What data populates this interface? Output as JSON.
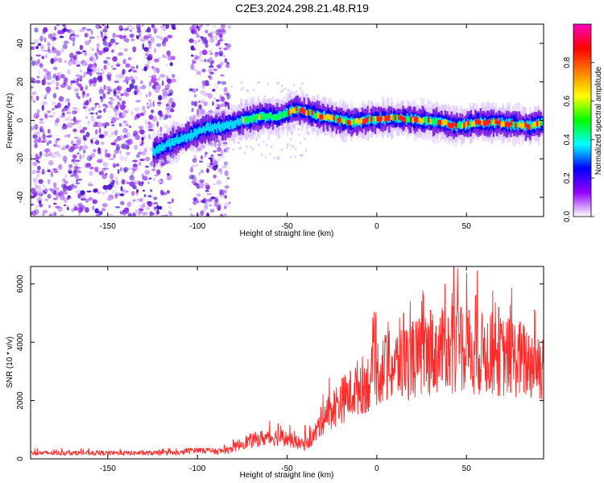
{
  "figure": {
    "title": "C2E3.2024.298.21.48.R19"
  },
  "chart_data": [
    {
      "type": "heatmap",
      "xlabel": "Height of straight line (km)",
      "ylabel": "Frequency (Hz)",
      "xlim": [
        -193,
        93
      ],
      "ylim": [
        -50,
        50
      ],
      "x_ticks": [
        -150,
        -100,
        -50,
        0,
        50
      ],
      "y_ticks": [
        -40,
        -20,
        0,
        20,
        40
      ],
      "colorbar": {
        "label": "Normalized spectral amplitude",
        "range": [
          0,
          1
        ],
        "ticks": [
          0,
          0.2,
          0.4,
          0.6,
          0.8
        ],
        "tick_labels": [
          "0.0",
          "0.2",
          "0.4",
          "0.6",
          "0.8"
        ],
        "colors": [
          "#ffffff",
          "#9400ff",
          "#0000ff",
          "#00ffff",
          "#00ff00",
          "#ffff00",
          "#ff8000",
          "#ff0000",
          "#ff00c0"
        ]
      },
      "ridge": {
        "x": [
          -125,
          -115,
          -105,
          -95,
          -85,
          -75,
          -65,
          -55,
          -45,
          -35,
          -25,
          -15,
          -5,
          5,
          15,
          25,
          35,
          45,
          55,
          65,
          75,
          85,
          92
        ],
        "y": [
          -16,
          -12,
          -8,
          -4,
          -3,
          0,
          2,
          2,
          6,
          3,
          1,
          -1,
          0,
          1,
          1,
          0,
          -1,
          -3,
          -1,
          -1,
          -2,
          -3,
          -1
        ]
      },
      "noise_region": {
        "x_range": [
          -193,
          -82
        ],
        "gaps_x": [
          [
            -113,
            -104
          ]
        ]
      }
    },
    {
      "type": "line",
      "xlabel": "Height of straight line (km)",
      "ylabel": "SNR (10 * v/v)",
      "xlim": [
        -193,
        93
      ],
      "ylim": [
        0,
        6600
      ],
      "x_ticks": [
        -150,
        -100,
        -50,
        0,
        50
      ],
      "y_ticks": [
        0,
        2000,
        4000,
        6000
      ],
      "color": "#ff2a2a",
      "envelope": {
        "x": [
          -193,
          -150,
          -110,
          -100,
          -90,
          -82,
          -75,
          -65,
          -55,
          -48,
          -40,
          -35,
          -30,
          -25,
          -20,
          -15,
          -10,
          -5,
          0,
          5,
          10,
          15,
          20,
          25,
          30,
          35,
          40,
          45,
          50,
          55,
          60,
          65,
          70,
          75,
          80,
          85,
          93
        ],
        "y": [
          200,
          200,
          200,
          350,
          250,
          300,
          550,
          700,
          750,
          650,
          450,
          800,
          1400,
          1700,
          2000,
          2200,
          2500,
          2600,
          3000,
          3100,
          3200,
          3300,
          3400,
          3500,
          3600,
          3700,
          3700,
          3800,
          3800,
          3600,
          3600,
          3600,
          3500,
          3500,
          3400,
          3300,
          3200
        ]
      },
      "peaks": {
        "x": [
          -106,
          -80,
          -55,
          -40,
          -30,
          5,
          15,
          20,
          25,
          30,
          38,
          43,
          47,
          55,
          60,
          68,
          80,
          88,
          93
        ],
        "y": [
          1100,
          650,
          1200,
          1150,
          2200,
          4000,
          5000,
          4700,
          5400,
          5100,
          6000,
          6600,
          5200,
          5600,
          4500,
          5200,
          4700,
          5100,
          4300
        ]
      }
    }
  ]
}
